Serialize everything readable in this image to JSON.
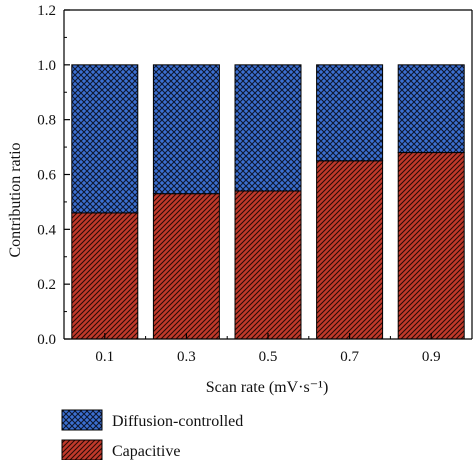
{
  "chart_data": {
    "type": "bar",
    "stacked": true,
    "categories": [
      "0.1",
      "0.3",
      "0.5",
      "0.7",
      "0.9"
    ],
    "series": [
      {
        "name": "Capacitive",
        "values": [
          0.46,
          0.53,
          0.54,
          0.65,
          0.68
        ],
        "color": "#c0392b",
        "pattern": "diagonal-hatch"
      },
      {
        "name": "Diffusion-controlled",
        "values": [
          0.54,
          0.47,
          0.46,
          0.35,
          0.32
        ],
        "color": "#3b6fd1",
        "pattern": "crosshatch"
      }
    ],
    "xlabel": "Scan rate (mV·s⁻¹)",
    "ylabel": "Contribution ratio",
    "ylim": [
      0,
      1.2
    ],
    "yticks": [
      "0.0",
      "0.2",
      "0.4",
      "0.6",
      "0.8",
      "1.0",
      "1.2"
    ],
    "grid": false,
    "legend_position": "bottom-left",
    "legend_order": [
      "Diffusion-controlled",
      "Capacitive"
    ]
  }
}
